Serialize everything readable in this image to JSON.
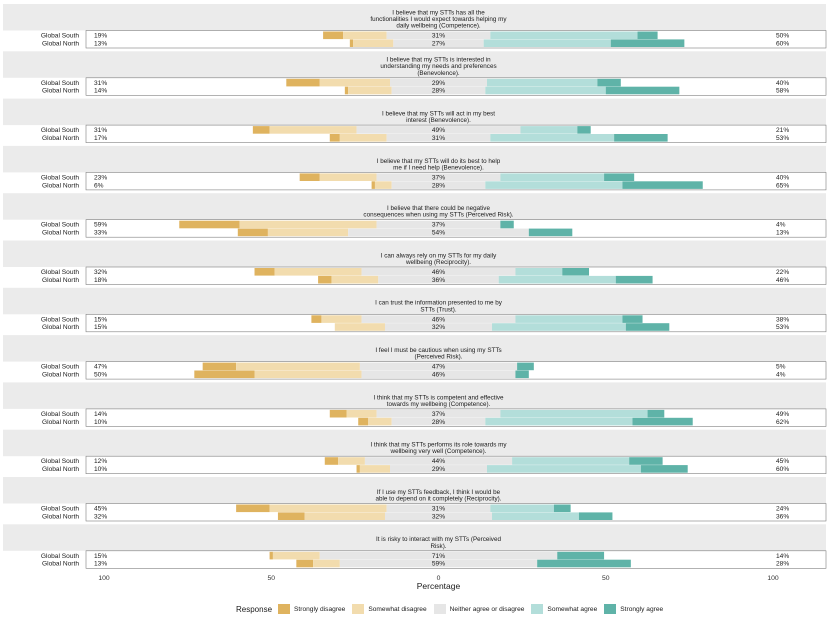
{
  "chart_data": {
    "type": "bar",
    "subtype": "diverging-stacked-likert",
    "xlabel": "Percentage",
    "x_ticks": [
      100,
      50,
      0,
      50,
      100
    ],
    "xlim": [
      -100,
      100
    ],
    "groups": [
      "Global South",
      "Global North"
    ],
    "legend": {
      "title": "Response",
      "position": "bottom",
      "entries": [
        {
          "name": "Strongly disagree",
          "color": "#dfb35f"
        },
        {
          "name": "Somewhat disagree",
          "color": "#f2dcae"
        },
        {
          "name": "Neither agree or disagree",
          "color": "#e6e6e6"
        },
        {
          "name": "Somewhat agree",
          "color": "#b3deda"
        },
        {
          "name": "Strongly agree",
          "color": "#5fb3a8"
        }
      ]
    },
    "panels": [
      {
        "title_lines": [
          "I believe that my STTs has all the",
          "functionalities I would expect towards helping my",
          "daily wellbeing (Competence)."
        ],
        "rows": [
          {
            "group": "Global South",
            "left_label": "19%",
            "center_label": "31%",
            "right_label": "50%",
            "values": [
              6,
              13,
              31,
              44,
              6
            ]
          },
          {
            "group": "Global North",
            "left_label": "13%",
            "center_label": "27%",
            "right_label": "60%",
            "values": [
              1,
              12,
              27,
              38,
              22
            ]
          }
        ]
      },
      {
        "title_lines": [
          "I believe that my STTs is interested in",
          "understanding my needs and preferences",
          "(Benevolence)."
        ],
        "rows": [
          {
            "group": "Global South",
            "left_label": "31%",
            "center_label": "29%",
            "right_label": "40%",
            "values": [
              10,
              21,
              29,
              33,
              7
            ]
          },
          {
            "group": "Global North",
            "left_label": "14%",
            "center_label": "28%",
            "right_label": "58%",
            "values": [
              1,
              13,
              28,
              36,
              22
            ]
          }
        ]
      },
      {
        "title_lines": [
          "I believe that my STTs will act in my best",
          "interest (Benevolence)."
        ],
        "rows": [
          {
            "group": "Global South",
            "left_label": "31%",
            "center_label": "49%",
            "right_label": "21%",
            "values": [
              5,
              26,
              49,
              17,
              4
            ]
          },
          {
            "group": "Global North",
            "left_label": "17%",
            "center_label": "31%",
            "right_label": "53%",
            "values": [
              3,
              14,
              31,
              37,
              16
            ]
          }
        ]
      },
      {
        "title_lines": [
          "I believe that my STTs will do its best to help",
          "me if I need help (Benevolence)."
        ],
        "rows": [
          {
            "group": "Global South",
            "left_label": "23%",
            "center_label": "37%",
            "right_label": "40%",
            "values": [
              6,
              17,
              37,
              31,
              9
            ]
          },
          {
            "group": "Global North",
            "left_label": "6%",
            "center_label": "28%",
            "right_label": "65%",
            "values": [
              1,
              5,
              28,
              41,
              24
            ]
          }
        ]
      },
      {
        "title_lines": [
          "I believe that there could be negative",
          "consequences when using my STTs (Perceived Risk)."
        ],
        "rows": [
          {
            "group": "Global South",
            "left_label": "59%",
            "center_label": "37%",
            "right_label": "4%",
            "values": [
              18,
              41,
              37,
              0,
              4
            ]
          },
          {
            "group": "Global North",
            "left_label": "33%",
            "center_label": "54%",
            "right_label": "13%",
            "values": [
              9,
              24,
              54,
              0,
              13
            ]
          }
        ]
      },
      {
        "title_lines": [
          "I can always rely on my STTs for my daily",
          "wellbeing (Reciprocity)."
        ],
        "rows": [
          {
            "group": "Global South",
            "left_label": "32%",
            "center_label": "46%",
            "right_label": "22%",
            "values": [
              6,
              26,
              46,
              14,
              8
            ]
          },
          {
            "group": "Global North",
            "left_label": "18%",
            "center_label": "36%",
            "right_label": "46%",
            "values": [
              4,
              14,
              36,
              35,
              11
            ]
          }
        ]
      },
      {
        "title_lines": [
          "I can trust the information presented to me by",
          "STTs (Trust)."
        ],
        "rows": [
          {
            "group": "Global South",
            "left_label": "15%",
            "center_label": "46%",
            "right_label": "38%",
            "values": [
              3,
              12,
              46,
              32,
              6
            ]
          },
          {
            "group": "Global North",
            "left_label": "15%",
            "center_label": "32%",
            "right_label": "53%",
            "values": [
              0,
              15,
              32,
              40,
              13
            ]
          }
        ]
      },
      {
        "title_lines": [
          "I feel I must be cautious when using my STTs",
          "(Perceived Risk)."
        ],
        "rows": [
          {
            "group": "Global South",
            "left_label": "47%",
            "center_label": "47%",
            "right_label": "5%",
            "values": [
              10,
              37,
              47,
              0,
              5
            ]
          },
          {
            "group": "Global North",
            "left_label": "50%",
            "center_label": "46%",
            "right_label": "4%",
            "values": [
              18,
              32,
              46,
              0,
              4
            ]
          }
        ]
      },
      {
        "title_lines": [
          "I think that my STTs is competent and effective",
          "towards my wellbeing (Competence)."
        ],
        "rows": [
          {
            "group": "Global South",
            "left_label": "14%",
            "center_label": "37%",
            "right_label": "49%",
            "values": [
              5,
              9,
              37,
              44,
              5
            ]
          },
          {
            "group": "Global North",
            "left_label": "10%",
            "center_label": "28%",
            "right_label": "62%",
            "values": [
              3,
              7,
              28,
              44,
              18
            ]
          }
        ]
      },
      {
        "title_lines": [
          "I think that my STTs performs its role towards my",
          "wellbeing very well (Competence)."
        ],
        "rows": [
          {
            "group": "Global South",
            "left_label": "12%",
            "center_label": "44%",
            "right_label": "45%",
            "values": [
              4,
              8,
              44,
              35,
              10
            ]
          },
          {
            "group": "Global North",
            "left_label": "10%",
            "center_label": "29%",
            "right_label": "60%",
            "values": [
              1,
              9,
              29,
              46,
              14
            ]
          }
        ]
      },
      {
        "title_lines": [
          "If I use my STTs feedback, I think I would be",
          "able to depend on it completely (Reciprocity)."
        ],
        "rows": [
          {
            "group": "Global South",
            "left_label": "45%",
            "center_label": "31%",
            "right_label": "24%",
            "values": [
              10,
              35,
              31,
              19,
              5
            ]
          },
          {
            "group": "Global North",
            "left_label": "32%",
            "center_label": "32%",
            "right_label": "36%",
            "values": [
              8,
              24,
              32,
              26,
              10
            ]
          }
        ]
      },
      {
        "title_lines": [
          "It is risky to interact with my STTs (Perceived",
          "Risk)."
        ],
        "rows": [
          {
            "group": "Global South",
            "left_label": "15%",
            "center_label": "71%",
            "right_label": "14%",
            "values": [
              1,
              14,
              71,
              0,
              14
            ]
          },
          {
            "group": "Global North",
            "left_label": "13%",
            "center_label": "59%",
            "right_label": "28%",
            "values": [
              5,
              8,
              59,
              0,
              28
            ]
          }
        ]
      }
    ]
  }
}
